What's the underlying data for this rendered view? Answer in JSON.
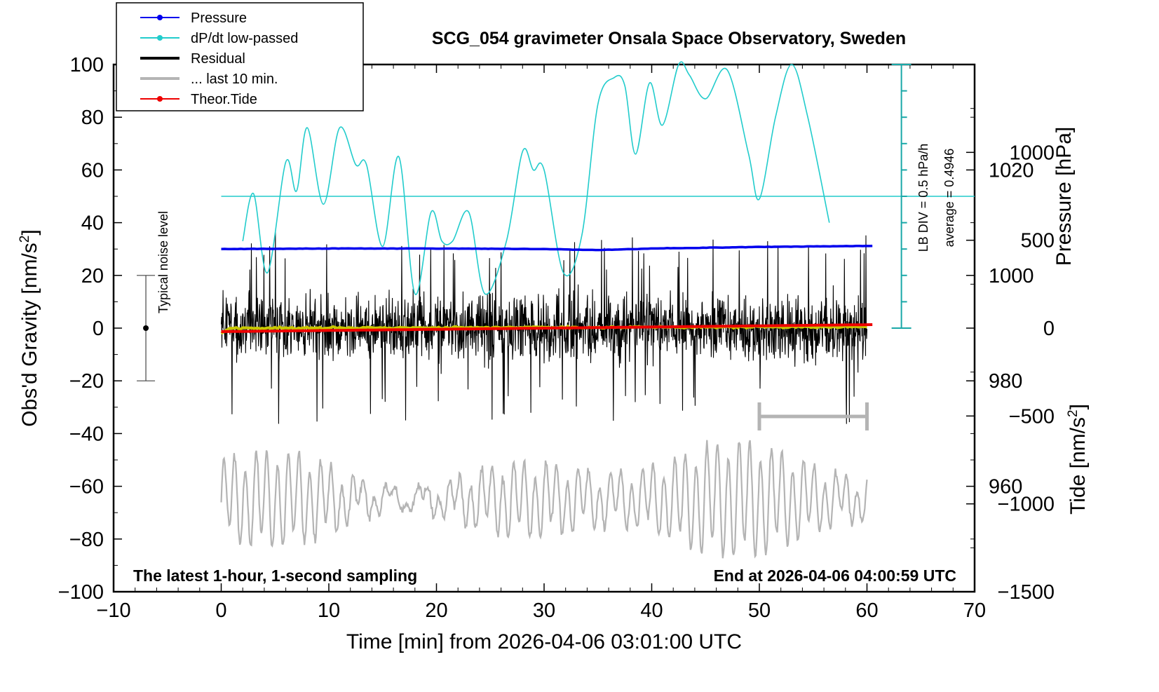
{
  "chart_data": {
    "type": "line",
    "title": "SCG_054 gravimeter Onsala Space Observatory, Sweden",
    "xlabel": "Time [min] from 2026-04-06 03:01:00 UTC",
    "ylabel_left_main": "Obs'd Gravity [nm/s",
    "ylabel_left_sup": "2",
    "ylabel_left_end": "]",
    "ylabel_right_pressure": "Pressure [hPa]",
    "ylabel_right_tide_main": "Tide [nm/s",
    "ylabel_right_tide_sup": "2",
    "ylabel_right_tide_end": "]",
    "xlim": [
      -10,
      70
    ],
    "ylim": [
      -100,
      100
    ],
    "pressure_lim": [
      940,
      1040
    ],
    "tide_lim": [
      -1500,
      1500
    ],
    "x_ticks": [
      "−10",
      "0",
      "10",
      "20",
      "30",
      "40",
      "50",
      "60",
      "70"
    ],
    "y_ticks": [
      "−100",
      "−80",
      "−60",
      "−40",
      "−20",
      "0",
      "20",
      "40",
      "60",
      "80",
      "100"
    ],
    "pressure_ticks": [
      "960",
      "980",
      "1000",
      "1020"
    ],
    "tide_ticks": [
      "−1500",
      "−1000",
      "−500",
      "0",
      "500",
      "1000"
    ],
    "footer_left": "The latest 1-hour, 1-second sampling",
    "footer_right": "End at 2026-04-06 04:00:59 UTC",
    "noise_label": "Typical noise level",
    "noise_level": {
      "x": -7,
      "center": 0,
      "low": -20,
      "high": 20
    },
    "lb_div_label": "LB DIV = 0.5 hPa/h",
    "average_label": "average = 0.4946",
    "dpdt_average_level": 50,
    "gray_bracket": {
      "x_start": 50,
      "x_end": 60,
      "y": -33.5
    },
    "legend": [
      {
        "name": "Pressure",
        "color": "#0000ee",
        "marker": true
      },
      {
        "name": "dP/dt low-passed",
        "color": "#22cccc",
        "marker": true
      },
      {
        "name": "Residual",
        "color": "#000000",
        "marker": false
      },
      {
        "name": "... last 10 min.",
        "color": "#b4b4b4",
        "marker": false
      },
      {
        "name": "Theor.Tide",
        "color": "#ee0000",
        "marker": true
      }
    ],
    "series": [
      {
        "name": "Pressure",
        "color": "#0000ee",
        "axis": "pressure",
        "x": [
          0,
          10,
          20,
          30,
          35,
          40,
          50,
          60.5
        ],
        "values": [
          1005.0,
          1005.1,
          1005.1,
          1005.0,
          1004.8,
          1005.1,
          1005.4,
          1005.6
        ]
      },
      {
        "name": "dP/dt low-passed",
        "color": "#22cccc",
        "axis": "left",
        "x": [
          2,
          3,
          4.3,
          6,
          7,
          8,
          9.5,
          11,
          12.5,
          13.5,
          15,
          16.5,
          18,
          19.5,
          20.5,
          21.5,
          23,
          24.5,
          26.5,
          28,
          29,
          30,
          31.8,
          33.5,
          35,
          36.5,
          37.5,
          38.5,
          39.8,
          41,
          42.5,
          43.5,
          45,
          47,
          49,
          50,
          51.5,
          53,
          54.5,
          56.5
        ],
        "values": [
          33,
          51,
          21,
          63,
          52,
          76,
          47,
          76,
          62,
          62,
          31,
          65,
          13,
          44,
          33,
          33,
          44,
          13,
          33,
          67,
          60,
          60,
          21,
          35,
          85,
          95,
          92,
          66,
          93,
          77,
          100,
          96,
          87,
          98,
          66,
          49,
          80,
          100,
          80,
          40
        ]
      },
      {
        "name": "Residual",
        "color": "#000000",
        "axis": "left",
        "x": [
          0,
          60
        ],
        "values": [
          0,
          0
        ],
        "amplitude": 17,
        "max_spike": 37
      },
      {
        "name": "Residual smoothed",
        "color": "#c8c800",
        "axis": "left",
        "x": [
          0,
          60
        ],
        "values": [
          0,
          0.5
        ]
      },
      {
        "name": "... last 10 min.",
        "color": "#b4b4b4",
        "axis": "left",
        "x": [
          0,
          60
        ],
        "values": [
          -61,
          -61
        ],
        "amplitude": 20
      },
      {
        "name": "Theor.Tide",
        "color": "#ee0000",
        "axis": "tide",
        "x": [
          0,
          60.5
        ],
        "values": [
          -20,
          20
        ]
      }
    ]
  }
}
